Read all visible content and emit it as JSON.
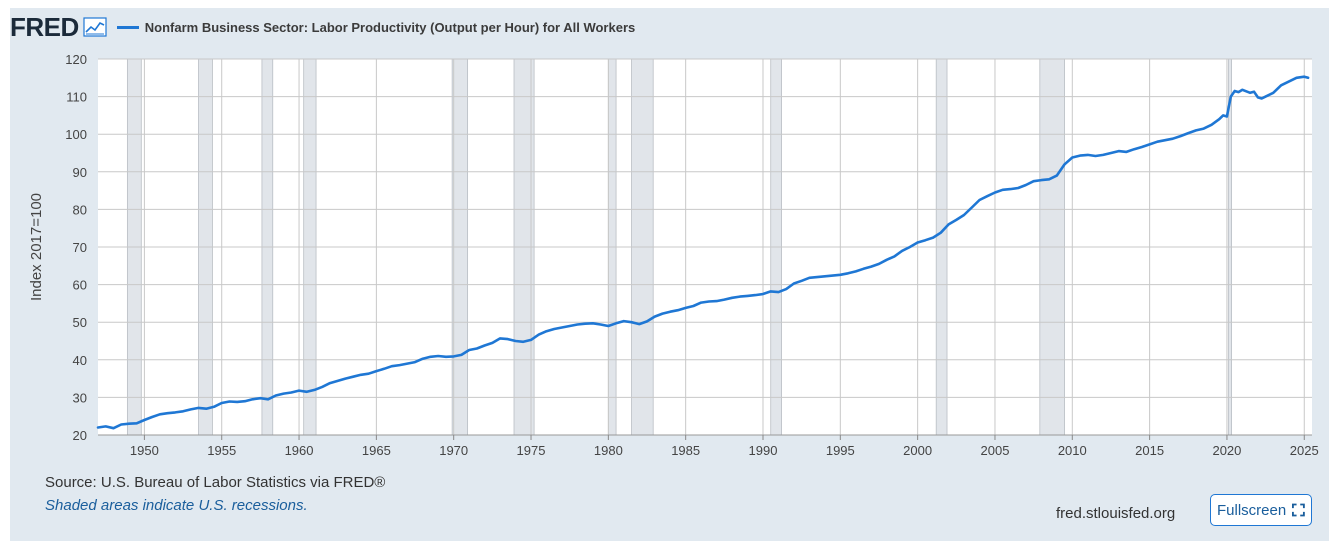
{
  "header": {
    "logo_text": "FRED",
    "logo_icon": "line-chart-icon",
    "title": "Nonfarm Business Sector: Labor Productivity (Output per Hour) for All Workers"
  },
  "footer": {
    "source": "Source: U.S. Bureau of Labor Statistics via FRED®",
    "recession_note": "Shaded areas indicate U.S. recessions.",
    "site": "fred.stlouisfed.org",
    "fullscreen_label": "Fullscreen",
    "fullscreen_icon": "expand-icon"
  },
  "colors": {
    "series": "#1f77d4",
    "recession": "#e1e5ea",
    "grid": "#c8c8c8",
    "frame": "#e1e9f0"
  },
  "chart_data": {
    "type": "line",
    "title": "Nonfarm Business Sector: Labor Productivity (Output per Hour) for All Workers",
    "xlabel": "",
    "ylabel": "Index 2017=100",
    "xlim": [
      1947,
      2025.5
    ],
    "ylim": [
      20,
      120
    ],
    "x_ticks": [
      "1950",
      "1955",
      "1960",
      "1965",
      "1970",
      "1975",
      "1980",
      "1985",
      "1990",
      "1995",
      "2000",
      "2005",
      "2010",
      "2015",
      "2020",
      "2025"
    ],
    "y_ticks": [
      "20",
      "30",
      "40",
      "50",
      "60",
      "70",
      "80",
      "90",
      "100",
      "110",
      "120"
    ],
    "grid": true,
    "legend": "top-left",
    "recessions": [
      [
        1948.9,
        1949.8
      ],
      [
        1953.5,
        1954.4
      ],
      [
        1957.6,
        1958.3
      ],
      [
        1960.3,
        1961.1
      ],
      [
        1969.9,
        1970.9
      ],
      [
        1973.9,
        1975.2
      ],
      [
        1980.0,
        1980.5
      ],
      [
        1981.5,
        1982.9
      ],
      [
        1990.5,
        1991.2
      ],
      [
        2001.2,
        2001.9
      ],
      [
        2007.9,
        2009.5
      ],
      [
        2020.1,
        2020.3
      ]
    ],
    "series": [
      {
        "name": "Nonfarm Business Sector: Labor Productivity (Output per Hour) for All Workers",
        "x": [
          1947.0,
          1947.5,
          1948.0,
          1948.5,
          1949.0,
          1949.5,
          1950.0,
          1950.5,
          1951.0,
          1951.5,
          1952.0,
          1952.5,
          1953.0,
          1953.5,
          1954.0,
          1954.5,
          1955.0,
          1955.5,
          1956.0,
          1956.5,
          1957.0,
          1957.5,
          1958.0,
          1958.5,
          1959.0,
          1959.5,
          1960.0,
          1960.5,
          1961.0,
          1961.5,
          1962.0,
          1962.5,
          1963.0,
          1963.5,
          1964.0,
          1964.5,
          1965.0,
          1965.5,
          1966.0,
          1966.5,
          1967.0,
          1967.5,
          1968.0,
          1968.5,
          1969.0,
          1969.5,
          1970.0,
          1970.5,
          1971.0,
          1971.5,
          1972.0,
          1972.5,
          1973.0,
          1973.5,
          1974.0,
          1974.5,
          1975.0,
          1975.5,
          1976.0,
          1976.5,
          1977.0,
          1977.5,
          1978.0,
          1978.5,
          1979.0,
          1979.5,
          1980.0,
          1980.5,
          1981.0,
          1981.5,
          1982.0,
          1982.5,
          1983.0,
          1983.5,
          1984.0,
          1984.5,
          1985.0,
          1985.5,
          1986.0,
          1986.5,
          1987.0,
          1987.5,
          1988.0,
          1988.5,
          1989.0,
          1989.5,
          1990.0,
          1990.5,
          1991.0,
          1991.5,
          1992.0,
          1992.5,
          1993.0,
          1993.5,
          1994.0,
          1994.5,
          1995.0,
          1995.5,
          1996.0,
          1996.5,
          1997.0,
          1997.5,
          1998.0,
          1998.5,
          1999.0,
          1999.5,
          2000.0,
          2000.5,
          2001.0,
          2001.5,
          2002.0,
          2002.5,
          2003.0,
          2003.5,
          2004.0,
          2004.5,
          2005.0,
          2005.5,
          2006.0,
          2006.5,
          2007.0,
          2007.5,
          2008.0,
          2008.5,
          2009.0,
          2009.5,
          2010.0,
          2010.5,
          2011.0,
          2011.5,
          2012.0,
          2012.5,
          2013.0,
          2013.5,
          2014.0,
          2014.5,
          2015.0,
          2015.5,
          2016.0,
          2016.5,
          2017.0,
          2017.5,
          2018.0,
          2018.5,
          2019.0,
          2019.5,
          2019.75,
          2020.0,
          2020.25,
          2020.5,
          2020.75,
          2021.0,
          2021.5,
          2021.75,
          2022.0,
          2022.25,
          2022.5,
          2023.0,
          2023.5,
          2024.0,
          2024.5,
          2025.0,
          2025.25
        ],
        "values": [
          22.0,
          22.3,
          21.8,
          22.8,
          23.0,
          23.1,
          24.0,
          24.8,
          25.5,
          25.8,
          26.0,
          26.3,
          26.8,
          27.2,
          27.0,
          27.5,
          28.5,
          28.9,
          28.8,
          29.0,
          29.5,
          29.8,
          29.5,
          30.5,
          31.0,
          31.3,
          31.8,
          31.5,
          32.0,
          32.8,
          33.8,
          34.4,
          35.0,
          35.5,
          36.0,
          36.3,
          37.0,
          37.6,
          38.3,
          38.6,
          39.0,
          39.4,
          40.3,
          40.8,
          41.0,
          40.8,
          40.9,
          41.3,
          42.6,
          43.0,
          43.8,
          44.5,
          45.7,
          45.5,
          45.0,
          44.8,
          45.3,
          46.7,
          47.6,
          48.2,
          48.6,
          49.0,
          49.4,
          49.6,
          49.7,
          49.4,
          49.0,
          49.7,
          50.3,
          50.0,
          49.5,
          50.2,
          51.5,
          52.3,
          52.8,
          53.2,
          53.8,
          54.3,
          55.2,
          55.5,
          55.6,
          56.0,
          56.5,
          56.8,
          57.0,
          57.2,
          57.5,
          58.2,
          58.0,
          58.8,
          60.3,
          61.0,
          61.8,
          62.0,
          62.2,
          62.4,
          62.6,
          63.0,
          63.5,
          64.2,
          64.8,
          65.5,
          66.6,
          67.5,
          69.0,
          70.0,
          71.2,
          71.8,
          72.5,
          73.8,
          76.0,
          77.2,
          78.5,
          80.5,
          82.5,
          83.5,
          84.5,
          85.2,
          85.4,
          85.7,
          86.5,
          87.5,
          87.8,
          88.0,
          89.0,
          92.0,
          93.8,
          94.3,
          94.5,
          94.2,
          94.5,
          95.0,
          95.5,
          95.3,
          96.0,
          96.6,
          97.3,
          98.0,
          98.4,
          98.8,
          99.5,
          100.3,
          101.0,
          101.5,
          102.5,
          104.0,
          105.0,
          104.7,
          110.0,
          111.5,
          111.2,
          111.8,
          111.0,
          111.3,
          109.8,
          109.5,
          110.0,
          111.0,
          113.0,
          114.0,
          115.0,
          115.3,
          115.0
        ]
      }
    ]
  }
}
